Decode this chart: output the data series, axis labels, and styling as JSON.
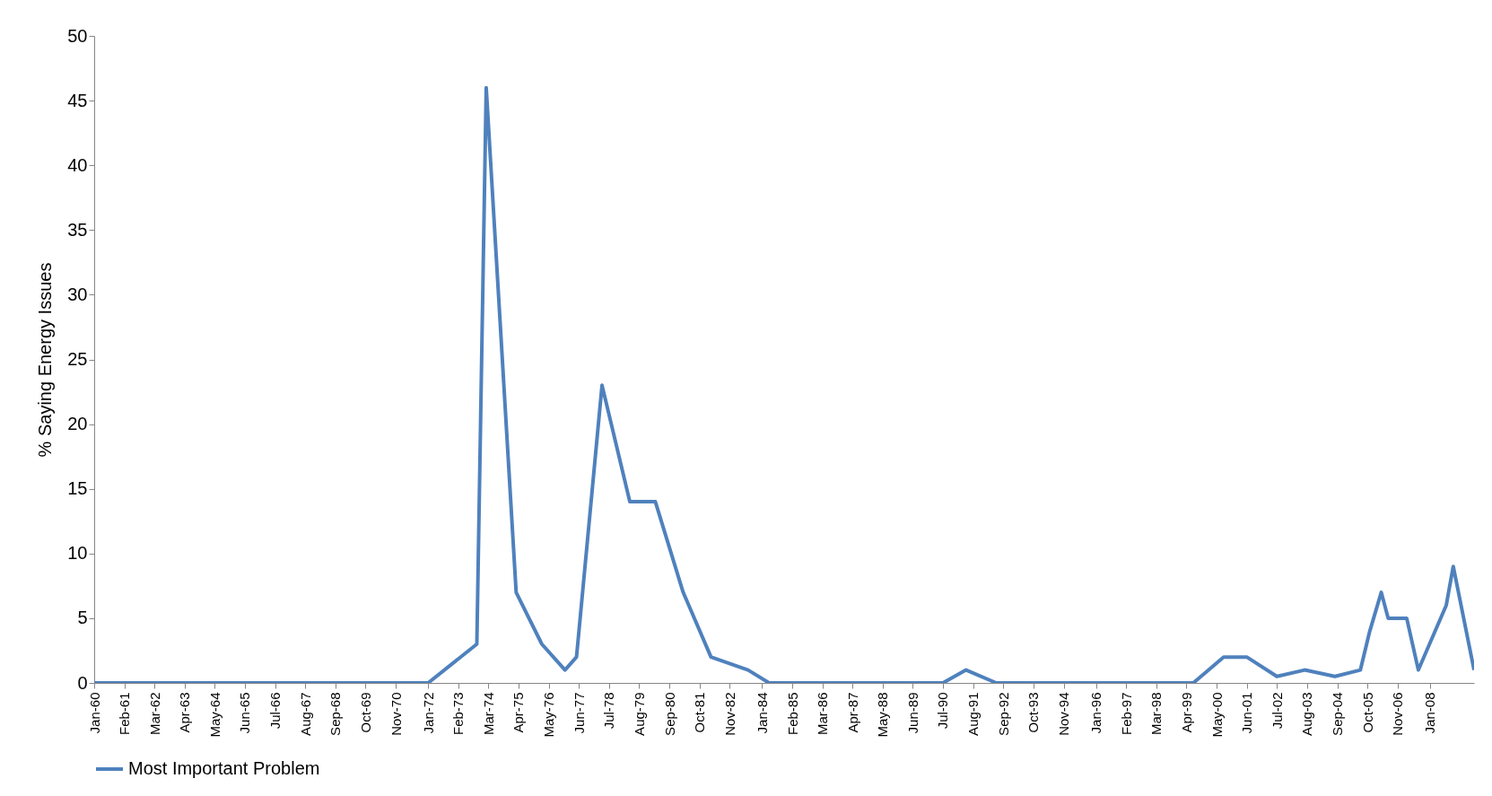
{
  "chart_data": {
    "type": "line",
    "ylabel": "% Saying Energy Issues",
    "x": [
      "1960-01",
      "1972-01",
      "1973-10",
      "1974-02",
      "1975-03",
      "1976-02",
      "1976-12",
      "1977-05",
      "1978-04",
      "1979-04",
      "1980-03",
      "1981-03",
      "1982-03",
      "1983-07",
      "1984-04",
      "1990-07",
      "1991-05",
      "1992-06",
      "1999-07",
      "2000-08",
      "2001-06",
      "2002-07",
      "2003-07",
      "2004-08",
      "2005-07",
      "2005-11",
      "2006-04",
      "2006-07",
      "2007-03",
      "2007-08",
      "2008-08",
      "2008-11",
      "2009-08"
    ],
    "series": [
      {
        "name": "Most Important Problem",
        "color": "#4f81bd",
        "values": [
          0,
          0,
          3,
          46,
          7,
          3,
          1,
          2,
          23,
          14,
          14,
          7,
          2,
          1,
          0,
          0,
          1,
          0,
          0,
          2,
          2,
          0.5,
          1,
          0.5,
          1,
          4,
          7,
          5,
          5,
          1,
          6,
          9,
          1
        ]
      }
    ],
    "xlim": [
      "1960-01",
      "2009-08"
    ],
    "xticks": [
      {
        "value": "1960-01",
        "label": "Jan-60"
      },
      {
        "value": "1961-02",
        "label": "Feb-61"
      },
      {
        "value": "1962-03",
        "label": "Mar-62"
      },
      {
        "value": "1963-04",
        "label": "Apr-63"
      },
      {
        "value": "1964-05",
        "label": "May-64"
      },
      {
        "value": "1965-06",
        "label": "Jun-65"
      },
      {
        "value": "1966-07",
        "label": "Jul-66"
      },
      {
        "value": "1967-08",
        "label": "Aug-67"
      },
      {
        "value": "1968-09",
        "label": "Sep-68"
      },
      {
        "value": "1969-10",
        "label": "Oct-69"
      },
      {
        "value": "1970-11",
        "label": "Nov-70"
      },
      {
        "value": "1972-01",
        "label": "Jan-72"
      },
      {
        "value": "1973-02",
        "label": "Feb-73"
      },
      {
        "value": "1974-03",
        "label": "Mar-74"
      },
      {
        "value": "1975-04",
        "label": "Apr-75"
      },
      {
        "value": "1976-05",
        "label": "May-76"
      },
      {
        "value": "1977-06",
        "label": "Jun-77"
      },
      {
        "value": "1978-07",
        "label": "Jul-78"
      },
      {
        "value": "1979-08",
        "label": "Aug-79"
      },
      {
        "value": "1980-09",
        "label": "Sep-80"
      },
      {
        "value": "1981-10",
        "label": "Oct-81"
      },
      {
        "value": "1982-11",
        "label": "Nov-82"
      },
      {
        "value": "1984-01",
        "label": "Jan-84"
      },
      {
        "value": "1985-02",
        "label": "Feb-85"
      },
      {
        "value": "1986-03",
        "label": "Mar-86"
      },
      {
        "value": "1987-04",
        "label": "Apr-87"
      },
      {
        "value": "1988-05",
        "label": "May-88"
      },
      {
        "value": "1989-06",
        "label": "Jun-89"
      },
      {
        "value": "1990-07",
        "label": "Jul-90"
      },
      {
        "value": "1991-08",
        "label": "Aug-91"
      },
      {
        "value": "1992-09",
        "label": "Sep-92"
      },
      {
        "value": "1993-10",
        "label": "Oct-93"
      },
      {
        "value": "1994-11",
        "label": "Nov-94"
      },
      {
        "value": "1996-01",
        "label": "Jan-96"
      },
      {
        "value": "1997-02",
        "label": "Feb-97"
      },
      {
        "value": "1998-03",
        "label": "Mar-98"
      },
      {
        "value": "1999-04",
        "label": "Apr-99"
      },
      {
        "value": "2000-05",
        "label": "May-00"
      },
      {
        "value": "2001-06",
        "label": "Jun-01"
      },
      {
        "value": "2002-07",
        "label": "Jul-02"
      },
      {
        "value": "2003-08",
        "label": "Aug-03"
      },
      {
        "value": "2004-09",
        "label": "Sep-04"
      },
      {
        "value": "2005-10",
        "label": "Oct-05"
      },
      {
        "value": "2006-11",
        "label": "Nov-06"
      },
      {
        "value": "2008-01",
        "label": "Jan-08"
      }
    ],
    "ylim": [
      0,
      50
    ],
    "yticks": [
      0,
      5,
      10,
      15,
      20,
      25,
      30,
      35,
      40,
      45,
      50
    ],
    "grid": false,
    "legend": "bottom",
    "marker": "none",
    "line_style": "solid"
  }
}
